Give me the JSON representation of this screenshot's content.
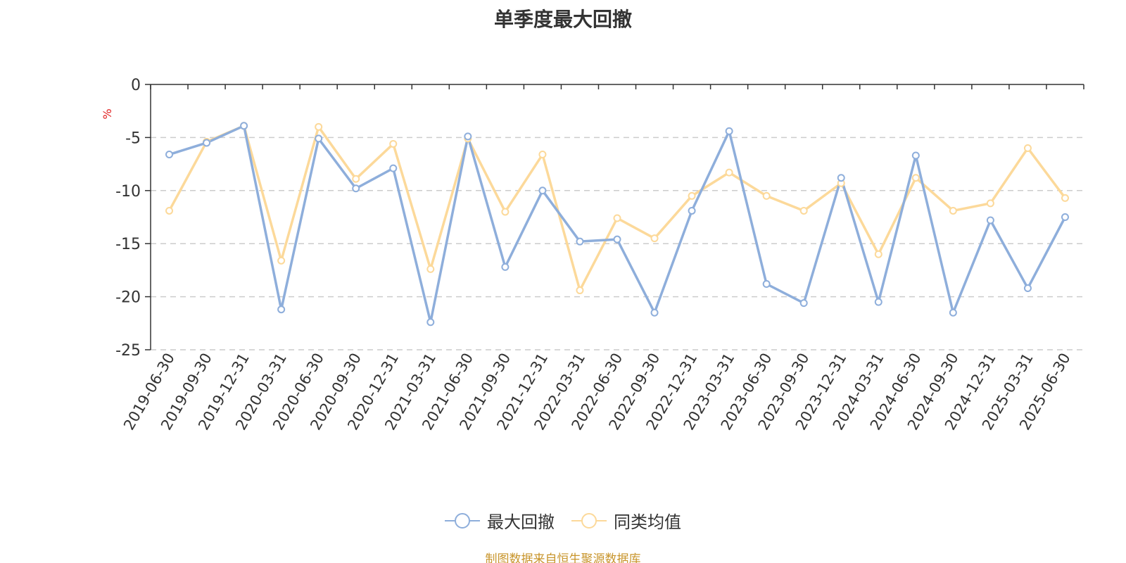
{
  "title": "单季度最大回撤",
  "source_note": "制图数据来自恒生聚源数据库",
  "chart_data": {
    "type": "line",
    "ylabel": "%",
    "xlabel": "",
    "ylim": [
      -25,
      0
    ],
    "yticks": [
      0,
      -5,
      -10,
      -15,
      -20,
      -25
    ],
    "grid": true,
    "legend_position": "bottom",
    "categories": [
      "2019-06-30",
      "2019-09-30",
      "2019-12-31",
      "2020-03-31",
      "2020-06-30",
      "2020-09-30",
      "2020-12-31",
      "2021-03-31",
      "2021-06-30",
      "2021-09-30",
      "2021-12-31",
      "2022-03-31",
      "2022-06-30",
      "2022-09-30",
      "2022-12-31",
      "2023-03-31",
      "2023-06-30",
      "2023-09-30",
      "2023-12-31",
      "2024-03-31",
      "2024-06-30",
      "2024-09-30",
      "2024-12-31",
      "2025-03-31",
      "2025-06-30"
    ],
    "series": [
      {
        "name": "最大回撤",
        "color": "#8eaedb",
        "values": [
          -6.6,
          -5.5,
          -3.9,
          -21.2,
          -5.1,
          -9.8,
          -7.9,
          -22.4,
          -4.9,
          -17.2,
          -10.0,
          -14.8,
          -14.6,
          -21.5,
          -11.9,
          -4.4,
          -18.8,
          -20.6,
          -8.8,
          -20.5,
          -6.7,
          -21.5,
          -12.8,
          -19.2,
          -12.5
        ]
      },
      {
        "name": "同类均值",
        "color": "#fcd99a",
        "values": [
          -11.9,
          -5.4,
          -3.9,
          -16.6,
          -4.0,
          -8.9,
          -5.6,
          -17.4,
          -5.1,
          -12.0,
          -6.6,
          -19.4,
          -12.6,
          -14.5,
          -10.5,
          -8.3,
          -10.5,
          -11.9,
          -9.3,
          -16.0,
          -8.8,
          -11.9,
          -11.2,
          -6.0,
          -10.7
        ]
      }
    ]
  }
}
